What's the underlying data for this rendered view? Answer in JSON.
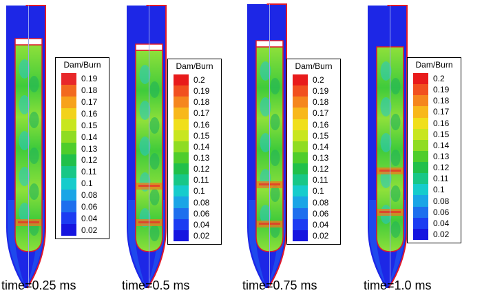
{
  "panels": [
    {
      "time_label": "time=0.25 ms",
      "legend_title": "Dam/Burn",
      "legend_values": [
        "0.19",
        "0.18",
        "0.17",
        "0.16",
        "0.15",
        "0.14",
        "0.13",
        "0.12",
        "0.11",
        "0.1",
        "0.08",
        "0.06",
        "0.04",
        "0.02"
      ],
      "legend_colors": [
        "#e8282a",
        "#f26a1f",
        "#f7a21b",
        "#f2d21b",
        "#c8e61f",
        "#8fdc22",
        "#4fcd2b",
        "#21c04a",
        "#18c787",
        "#16cccc",
        "#1aa5e6",
        "#1e6fee",
        "#1c3cf2",
        "#1515e0"
      ]
    },
    {
      "time_label": "time=0.5 ms",
      "legend_title": "Dam/Burn",
      "legend_values": [
        "0.2",
        "0.19",
        "0.18",
        "0.17",
        "0.16",
        "0.15",
        "0.14",
        "0.13",
        "0.12",
        "0.11",
        "0.1",
        "0.08",
        "0.06",
        "0.04",
        "0.02"
      ],
      "legend_colors": [
        "#e81b1b",
        "#f1501f",
        "#f5861d",
        "#f8b81b",
        "#f0df1b",
        "#c8e61f",
        "#8fdc22",
        "#4fcd2b",
        "#21c04a",
        "#18c787",
        "#16cccc",
        "#1aa5e6",
        "#1e6fee",
        "#1c3cf2",
        "#1515e0"
      ]
    },
    {
      "time_label": "time=0.75 ms",
      "legend_title": "Dam/Burn",
      "legend_values": [
        "0.2",
        "0.19",
        "0.18",
        "0.17",
        "0.16",
        "0.15",
        "0.14",
        "0.13",
        "0.12",
        "0.11",
        "0.1",
        "0.08",
        "0.06",
        "0.04",
        "0.02"
      ],
      "legend_colors": [
        "#e81b1b",
        "#f1501f",
        "#f5861d",
        "#f8b81b",
        "#f0df1b",
        "#c8e61f",
        "#8fdc22",
        "#4fcd2b",
        "#21c04a",
        "#18c787",
        "#16cccc",
        "#1aa5e6",
        "#1e6fee",
        "#1c3cf2",
        "#1515e0"
      ]
    },
    {
      "time_label": "time=1.0 ms",
      "legend_title": "Dam/Burn",
      "legend_values": [
        "0.2",
        "0.19",
        "0.18",
        "0.17",
        "0.16",
        "0.15",
        "0.14",
        "0.13",
        "0.12",
        "0.11",
        "0.1",
        "0.08",
        "0.06",
        "0.04",
        "0.02"
      ],
      "legend_colors": [
        "#e81b1b",
        "#f1501f",
        "#f5861d",
        "#f8b81b",
        "#f0df1b",
        "#c8e61f",
        "#8fdc22",
        "#4fcd2b",
        "#21c04a",
        "#18c787",
        "#16cccc",
        "#1aa5e6",
        "#1e6fee",
        "#1c3cf2",
        "#1515e0"
      ]
    }
  ],
  "colors": {
    "shell": "#1d27e6",
    "shell_dark": "#1515c8",
    "outline": "#e01a2a",
    "core": "#3fcb3b",
    "core_light": "#8fe03a",
    "core_dark": "#22b45a",
    "hot": "#f07a1e",
    "cyan": "#27c8c8",
    "axis": "#9aa6ee"
  }
}
